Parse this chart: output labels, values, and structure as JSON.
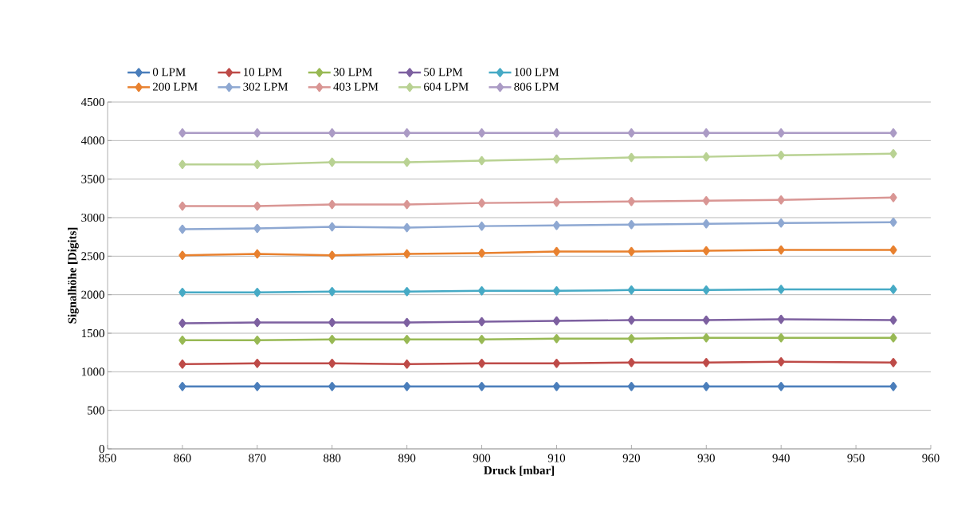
{
  "chart_data": {
    "type": "line",
    "xlabel": "Druck [mbar]",
    "ylabel": "Signalhöhe [Digits]",
    "x": [
      860,
      870,
      880,
      890,
      900,
      910,
      920,
      930,
      940,
      955
    ],
    "xlim": [
      850,
      960
    ],
    "xticks": [
      850,
      860,
      870,
      880,
      890,
      900,
      910,
      920,
      930,
      940,
      950,
      960
    ],
    "ylim": [
      0,
      4500
    ],
    "yticks": [
      0,
      500,
      1000,
      1500,
      2000,
      2500,
      3000,
      3500,
      4000,
      4500
    ],
    "grid": "y",
    "legend": "top",
    "marker": "diamond",
    "line_style": "solid",
    "series": [
      {
        "name": "0 LPM",
        "color": "#4a7ebb",
        "values": [
          810,
          810,
          810,
          810,
          810,
          810,
          810,
          810,
          810,
          810
        ]
      },
      {
        "name": "10 LPM",
        "color": "#be4b48",
        "values": [
          1100,
          1110,
          1110,
          1100,
          1110,
          1110,
          1120,
          1120,
          1130,
          1120
        ]
      },
      {
        "name": "30 LPM",
        "color": "#98b954",
        "values": [
          1410,
          1410,
          1420,
          1420,
          1420,
          1430,
          1430,
          1440,
          1440,
          1440
        ]
      },
      {
        "name": "50 LPM",
        "color": "#7d60a0",
        "values": [
          1630,
          1640,
          1640,
          1640,
          1650,
          1660,
          1670,
          1670,
          1680,
          1670
        ]
      },
      {
        "name": "100 LPM",
        "color": "#46aac5",
        "values": [
          2030,
          2030,
          2040,
          2040,
          2050,
          2050,
          2060,
          2060,
          2070,
          2070
        ]
      },
      {
        "name": "200 LPM",
        "color": "#e8812f",
        "values": [
          2510,
          2530,
          2510,
          2530,
          2540,
          2560,
          2560,
          2570,
          2580,
          2580
        ]
      },
      {
        "name": "302 LPM",
        "color": "#8ea8d2",
        "values": [
          2850,
          2860,
          2880,
          2870,
          2890,
          2900,
          2910,
          2920,
          2930,
          2940
        ]
      },
      {
        "name": "403 LPM",
        "color": "#d99694",
        "values": [
          3150,
          3150,
          3170,
          3170,
          3190,
          3200,
          3210,
          3220,
          3230,
          3260
        ]
      },
      {
        "name": "604 LPM",
        "color": "#b9d293",
        "values": [
          3690,
          3690,
          3720,
          3720,
          3740,
          3760,
          3780,
          3790,
          3810,
          3830
        ]
      },
      {
        "name": "806 LPM",
        "color": "#ab9bc5",
        "values": [
          4100,
          4100,
          4100,
          4100,
          4100,
          4100,
          4100,
          4100,
          4100,
          4100
        ]
      }
    ]
  }
}
